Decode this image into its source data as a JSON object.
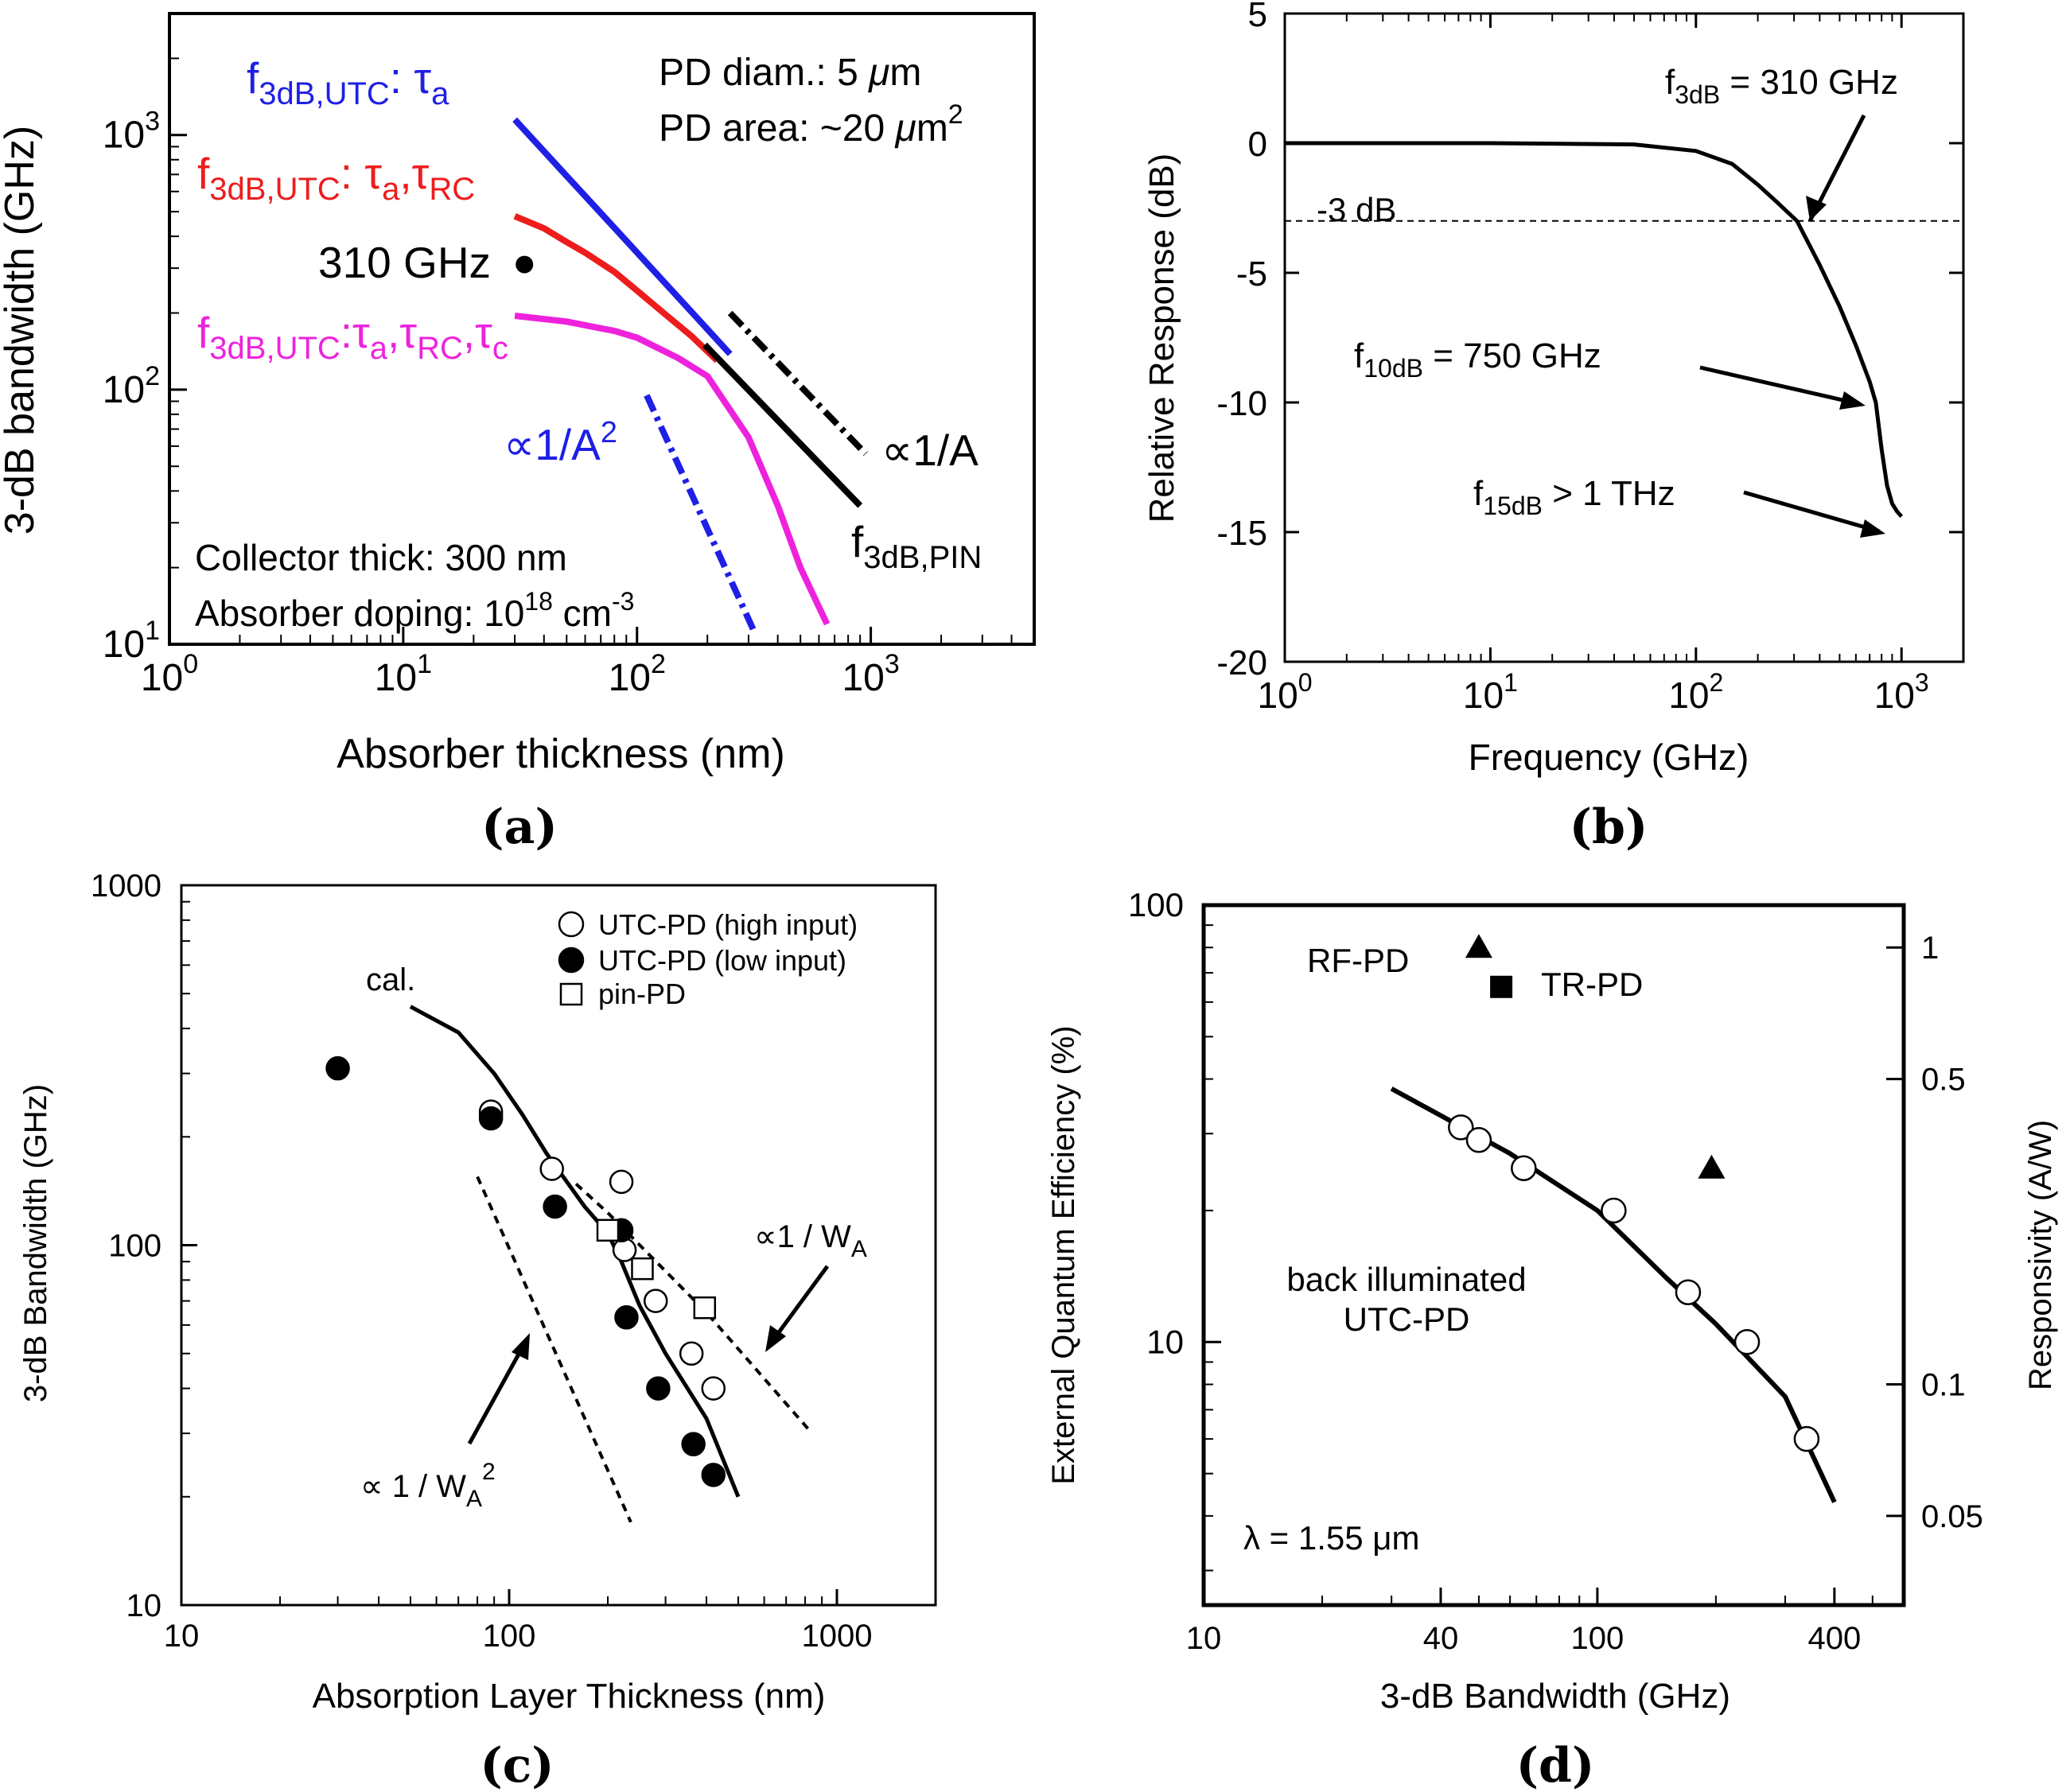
{
  "panels": {
    "a": {
      "label": "(a)"
    },
    "b": {
      "label": "(b)"
    },
    "c": {
      "label": "(c)"
    },
    "d": {
      "label": "(d)"
    }
  },
  "chart_data": [
    {
      "id": "a",
      "type": "line",
      "xscale": "log",
      "yscale": "log",
      "xlim": [
        1,
        5000
      ],
      "ylim": [
        10,
        3000
      ],
      "xlabel": "Absorber thickness (nm)",
      "ylabel": "3-dB bandwidth (GHz)",
      "xticks": [
        {
          "v": 1,
          "base": "10",
          "exp": "0"
        },
        {
          "v": 10,
          "base": "10",
          "exp": "1"
        },
        {
          "v": 100,
          "base": "10",
          "exp": "2"
        },
        {
          "v": 1000,
          "base": "10",
          "exp": "3"
        }
      ],
      "yticks": [
        {
          "v": 10,
          "base": "10",
          "exp": "1"
        },
        {
          "v": 100,
          "base": "10",
          "exp": "2"
        },
        {
          "v": 1000,
          "base": "10",
          "exp": "3"
        }
      ],
      "series": [
        {
          "key": "tau_a",
          "color": "#1f1fe6",
          "style": "solid",
          "x": [
            30,
            50,
            80,
            120,
            180,
            250
          ],
          "y": [
            1150,
            690,
            432,
            288,
            192,
            138
          ]
        },
        {
          "key": "tau_a_rc",
          "color": "#ee1c1c",
          "style": "solid",
          "x": [
            30,
            40,
            50,
            60,
            80,
            100,
            130,
            170,
            220
          ],
          "y": [
            480,
            430,
            380,
            345,
            290,
            245,
            200,
            163,
            130
          ]
        },
        {
          "key": "tau_a_rc_c",
          "color": "#ee22dd",
          "style": "solid",
          "x": [
            30,
            50,
            80,
            100,
            150,
            200,
            300,
            400,
            500,
            650
          ],
          "y": [
            195,
            185,
            170,
            160,
            133,
            113,
            65,
            35,
            20,
            12
          ]
        },
        {
          "key": "inv_a2",
          "color": "#1f1fe6",
          "style": "dashdot",
          "x": [
            110,
            320
          ],
          "y": [
            95,
            11
          ]
        },
        {
          "key": "inv_a_dashdot",
          "color": "#000000",
          "style": "dashdot",
          "x": [
            250,
            950
          ],
          "y": [
            200,
            56
          ]
        },
        {
          "key": "inv_a_pin",
          "color": "#000000",
          "style": "solid",
          "x": [
            195,
            900
          ],
          "y": [
            150,
            35
          ]
        }
      ],
      "points": [
        {
          "x": 33,
          "y": 310,
          "color": "#000000"
        }
      ],
      "annotations": {
        "tau_a": {
          "main": "f",
          "sub": "3dB,UTC",
          "rest": ": τ",
          "rest_sub": "a"
        },
        "tau_a_rc": {
          "main": "f",
          "sub": "3dB,UTC",
          "rest": ": τ",
          "rest_sub": "a",
          "rest2": ",τ",
          "rest2_sub": "RC"
        },
        "tau_a_rc_c": {
          "main": "f",
          "sub": "3dB,UTC",
          "rest": ":τ",
          "rest_sub": "a",
          "rest2": ",τ",
          "rest2_sub": "RC",
          "rest3": ",τ",
          "rest3_sub": "c"
        },
        "point_label": "310 GHz",
        "inv_a2": {
          "text": "∝1/A",
          "sup": "2"
        },
        "inv_a": "∝1/A",
        "pin": {
          "main": "f",
          "sub": "3dB,PIN"
        },
        "diam": {
          "text": "PD diam.: 5 ",
          "mu": "μ",
          "unit": "m"
        },
        "area": {
          "text": "PD area: ~20 ",
          "mu": "μ",
          "unit": "m",
          "sup": "2"
        },
        "collector": "Collector thick: 300 nm",
        "doping": {
          "text": "Absorber doping: 10",
          "sup": "18",
          "unit": " cm",
          "sup2": "-3"
        }
      }
    },
    {
      "id": "b",
      "type": "line",
      "xscale": "log",
      "xlim": [
        1,
        2000
      ],
      "ylim": [
        -20,
        5
      ],
      "xlabel": "Frequency (GHz)",
      "ylabel": "Relative Response (dB)",
      "xticks": [
        {
          "v": 1,
          "base": "10",
          "exp": "0"
        },
        {
          "v": 10,
          "base": "10",
          "exp": "1"
        },
        {
          "v": 100,
          "base": "10",
          "exp": "2"
        },
        {
          "v": 1000,
          "base": "10",
          "exp": "3"
        }
      ],
      "yticks": [
        5,
        0,
        -5,
        -10,
        -15,
        -20
      ],
      "series": [
        {
          "key": "response",
          "color": "#000000",
          "style": "solid",
          "x": [
            1,
            10,
            50,
            100,
            150,
            200,
            250,
            310,
            400,
            500,
            600,
            700,
            750,
            800,
            850,
            900,
            950,
            1000
          ],
          "y": [
            0,
            0,
            -0.05,
            -0.3,
            -0.8,
            -1.6,
            -2.3,
            -3,
            -4.7,
            -6.3,
            -7.8,
            -9.2,
            -10,
            -11.8,
            -13.2,
            -13.9,
            -14.2,
            -14.4
          ]
        }
      ],
      "reference": {
        "y": -3,
        "label": "-3 dB"
      },
      "annotations": {
        "f3": {
          "main": "f",
          "sub": "3dB",
          "rest": " = 310 GHz"
        },
        "f10": {
          "main": "f",
          "sub": "10dB",
          "rest": " = 750 GHz"
        },
        "f15": {
          "main": "f",
          "sub": "15dB",
          "rest": " > 1 THz"
        }
      }
    },
    {
      "id": "c",
      "type": "scatter",
      "xscale": "log",
      "yscale": "log",
      "xlim": [
        10,
        2000
      ],
      "ylim": [
        10,
        1000
      ],
      "xlabel": "Absorption Layer Thickness (nm)",
      "ylabel": "3-dB Bandwidth (GHz)",
      "xticks": [
        {
          "v": 10,
          "t": "10"
        },
        {
          "v": 100,
          "t": "100"
        },
        {
          "v": 1000,
          "t": "1000"
        }
      ],
      "yticks": [
        {
          "v": 10,
          "t": "10"
        },
        {
          "v": 100,
          "t": "100"
        },
        {
          "v": 1000,
          "t": "1000"
        }
      ],
      "series": [
        {
          "key": "utc_high",
          "name": "UTC-PD (high input)",
          "marker": "open-circle",
          "x": [
            88,
            88,
            135,
            220,
            225,
            280,
            360,
            420
          ],
          "y": [
            230,
            235,
            163,
            150,
            97,
            70,
            50,
            40
          ]
        },
        {
          "key": "utc_low",
          "name": "UTC-PD (low input)",
          "marker": "filled-circle",
          "x": [
            30,
            88,
            138,
            220,
            228,
            285,
            365,
            420
          ],
          "y": [
            310,
            225,
            128,
            110,
            63,
            40,
            28,
            23
          ]
        },
        {
          "key": "pin",
          "name": "pin-PD",
          "marker": "open-square",
          "x": [
            200,
            255,
            395
          ],
          "y": [
            110,
            86,
            67
          ]
        }
      ],
      "lines": [
        {
          "key": "cal",
          "style": "solid",
          "x": [
            50,
            70,
            90,
            110,
            130,
            150,
            170,
            200,
            220,
            250,
            300,
            400,
            500
          ],
          "y": [
            460,
            390,
            300,
            230,
            180,
            150,
            128,
            108,
            90,
            68,
            50,
            33,
            20
          ]
        },
        {
          "key": "inv_w2",
          "style": "dashed",
          "x": [
            80,
            235
          ],
          "y": [
            155,
            17
          ]
        },
        {
          "key": "inv_w",
          "style": "dashed",
          "x": [
            160,
            200,
            400,
            840
          ],
          "y": [
            148,
            123,
            65,
            30
          ]
        }
      ],
      "annotations": {
        "cal": "cal.",
        "inv_w": {
          "text": "∝1 / W",
          "sub": "A"
        },
        "inv_w2": {
          "text": "∝ 1 / W",
          "sub": "A",
          "sup": "2"
        }
      }
    },
    {
      "id": "d",
      "type": "scatter",
      "xscale": "log",
      "yscale": "log",
      "xlim": [
        10,
        600
      ],
      "ylim": [
        2.5,
        100
      ],
      "xlabel": "3-dB Bandwidth (GHz)",
      "ylabel": "External Quantum Efficiency (%)",
      "y2label": "Responsivity (A/W)",
      "xticks": [
        {
          "v": 10,
          "t": "10"
        },
        {
          "v": 40,
          "t": "40"
        },
        {
          "v": 100,
          "t": "100"
        },
        {
          "v": 400,
          "t": "400"
        }
      ],
      "yticks": [
        {
          "v": 10,
          "t": "10"
        },
        {
          "v": 100,
          "t": "100"
        }
      ],
      "y2ticks": [
        {
          "v": 80,
          "t": "1"
        },
        {
          "v": 40,
          "t": "0.5"
        },
        {
          "v": 8,
          "t": "0.1"
        },
        {
          "v": 4,
          "t": "0.05"
        }
      ],
      "series": [
        {
          "key": "utc",
          "name": "back illuminated UTC-PD",
          "marker": "open-circle",
          "x": [
            45,
            50,
            65,
            110,
            170,
            240,
            340
          ],
          "y": [
            31,
            29,
            25,
            20,
            13,
            10,
            6
          ]
        },
        {
          "key": "rfpd",
          "name": "RF-PD",
          "marker": "filled-triangle",
          "x": [
            50,
            195
          ],
          "y": [
            80,
            25
          ]
        },
        {
          "key": "trpd",
          "name": "TR-PD",
          "marker": "filled-square",
          "x": [
            57
          ],
          "y": [
            65
          ]
        }
      ],
      "lines": [
        {
          "key": "fit",
          "style": "solid",
          "x": [
            30,
            40,
            60,
            100,
            150,
            200,
            300,
            400
          ],
          "y": [
            38,
            33,
            27,
            20,
            14,
            11,
            7.5,
            4.3
          ]
        }
      ],
      "annotations": {
        "rfpd": "RF-PD",
        "trpd": "TR-PD",
        "utc1": "back illuminated",
        "utc2": "UTC-PD",
        "lambda": "λ = 1.55 μm"
      }
    }
  ]
}
